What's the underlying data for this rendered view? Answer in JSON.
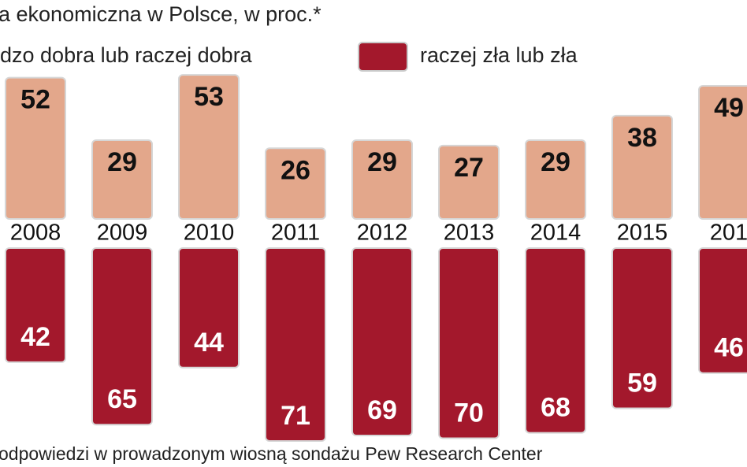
{
  "chart_data": {
    "type": "diverging-bar",
    "title": "a ekonomiczna w Polsce, w proc.*",
    "note": "odpowiedzi w prowadzonym wiosną sondażu Pew Research Center",
    "categories": [
      "2008",
      "2009",
      "2010",
      "2011",
      "2012",
      "2013",
      "2014",
      "2015",
      "201"
    ],
    "series": [
      {
        "name": "dzo dobra lub raczej dobra",
        "color": "#e3a78b",
        "values": [
          52,
          29,
          53,
          26,
          29,
          27,
          29,
          38,
          49
        ]
      },
      {
        "name": "raczej zła lub zła",
        "color": "#a3182c",
        "values": [
          42,
          65,
          44,
          71,
          69,
          70,
          68,
          59,
          46
        ]
      }
    ]
  }
}
